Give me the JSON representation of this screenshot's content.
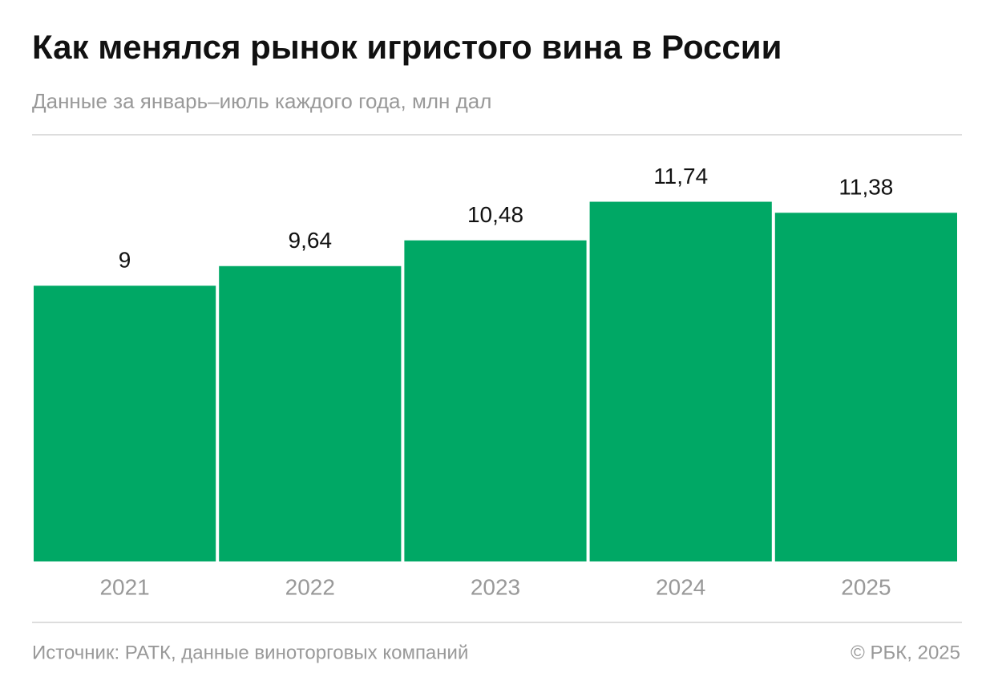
{
  "chart_data": {
    "type": "bar",
    "title": "Как менялся рынок игристого вина в России",
    "subtitle": "Данные за январь–июль каждого года, млн дал",
    "categories": [
      "2021",
      "2022",
      "2023",
      "2024",
      "2025"
    ],
    "values": [
      9,
      9.64,
      10.48,
      11.74,
      11.38
    ],
    "value_labels": [
      "9",
      "9,64",
      "10,48",
      "11,74",
      "11,38"
    ],
    "color": "#00a865",
    "ylim": [
      0,
      12
    ],
    "source": "Источник: РАТК, данные виноторговых компаний",
    "credit": "© РБК, 2025"
  }
}
